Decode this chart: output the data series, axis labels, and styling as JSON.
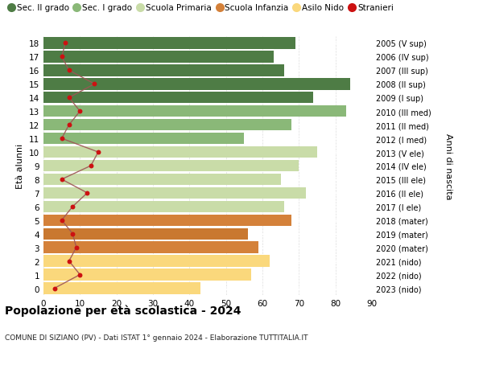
{
  "ages": [
    0,
    1,
    2,
    3,
    4,
    5,
    6,
    7,
    8,
    9,
    10,
    11,
    12,
    13,
    14,
    15,
    16,
    17,
    18
  ],
  "bar_values": [
    43,
    57,
    62,
    59,
    56,
    68,
    66,
    72,
    65,
    70,
    75,
    55,
    68,
    83,
    74,
    84,
    66,
    63,
    69
  ],
  "stranieri": [
    3,
    10,
    7,
    9,
    8,
    5,
    8,
    12,
    5,
    13,
    15,
    5,
    7,
    10,
    7,
    14,
    7,
    5,
    6
  ],
  "bar_colors": {
    "0": "#fad87c",
    "1": "#fad87c",
    "2": "#fad87c",
    "3": "#d4813a",
    "4": "#c97830",
    "5": "#d4813a",
    "6": "#c9dca8",
    "7": "#c9dca8",
    "8": "#c9dca8",
    "9": "#c9dca8",
    "10": "#c9dca8",
    "11": "#8ab878",
    "12": "#8ab878",
    "13": "#8ab878",
    "14": "#4e7c45",
    "15": "#4e7c45",
    "16": "#4e7c45",
    "17": "#4e7c45",
    "18": "#4e7c45"
  },
  "right_labels": [
    "2023 (nido)",
    "2022 (nido)",
    "2021 (nido)",
    "2020 (mater)",
    "2019 (mater)",
    "2018 (mater)",
    "2017 (I ele)",
    "2016 (II ele)",
    "2015 (III ele)",
    "2014 (IV ele)",
    "2013 (V ele)",
    "2012 (I med)",
    "2011 (II med)",
    "2010 (III med)",
    "2009 (I sup)",
    "2008 (II sup)",
    "2007 (III sup)",
    "2006 (IV sup)",
    "2005 (V sup)"
  ],
  "xlim": [
    0,
    90
  ],
  "xticks": [
    0,
    10,
    20,
    30,
    40,
    50,
    60,
    70,
    80,
    90
  ],
  "ylabel_left": "Età alunni",
  "ylabel_right": "Anni di nascita",
  "title_main": "Popolazione per età scolastica - 2024",
  "title_sub": "COMUNE DI SIZIANO (PV) - Dati ISTAT 1° gennaio 2024 - Elaborazione TUTTITALIA.IT",
  "legend_entries": [
    {
      "label": "Sec. II grado",
      "color": "#4e7c45"
    },
    {
      "label": "Sec. I grado",
      "color": "#8ab878"
    },
    {
      "label": "Scuola Primaria",
      "color": "#c9dca8"
    },
    {
      "label": "Scuola Infanzia",
      "color": "#d4813a"
    },
    {
      "label": "Asilo Nido",
      "color": "#fad87c"
    },
    {
      "label": "Stranieri",
      "color": "#cc1111"
    }
  ],
  "stranieri_color": "#cc1111",
  "stranieri_line_color": "#9e5555",
  "bg_color": "#ffffff",
  "grid_color": "#dddddd"
}
